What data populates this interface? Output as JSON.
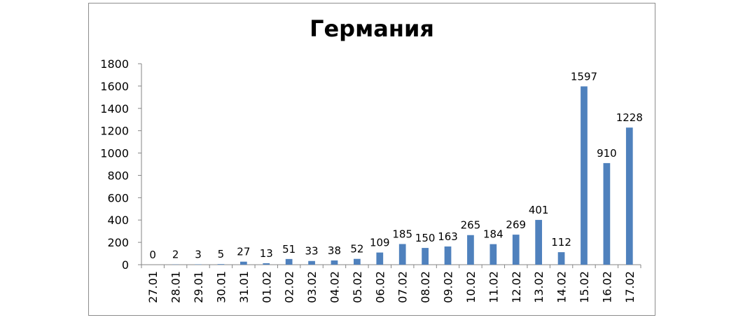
{
  "chart_data": {
    "type": "bar",
    "title": "Германия",
    "xlabel": "",
    "ylabel": "",
    "categories": [
      "27.01",
      "28.01",
      "29.01",
      "30.01",
      "31.01",
      "01.02",
      "02.02",
      "03.02",
      "04.02",
      "05.02",
      "06.02",
      "07.02",
      "08.02",
      "09.02",
      "10.02",
      "11.02",
      "12.02",
      "13.02",
      "14.02",
      "15.02",
      "16.02",
      "17.02"
    ],
    "values": [
      0,
      2,
      3,
      5,
      27,
      13,
      51,
      33,
      38,
      52,
      109,
      185,
      150,
      163,
      265,
      184,
      269,
      401,
      112,
      1597,
      910,
      1228
    ],
    "ylim": [
      0,
      1800
    ],
    "yticks": [
      0,
      200,
      400,
      600,
      800,
      1000,
      1200,
      1400,
      1600,
      1800
    ],
    "grid": false,
    "legend": "none",
    "bar_color": "#4f81bd",
    "data_labels": true
  }
}
